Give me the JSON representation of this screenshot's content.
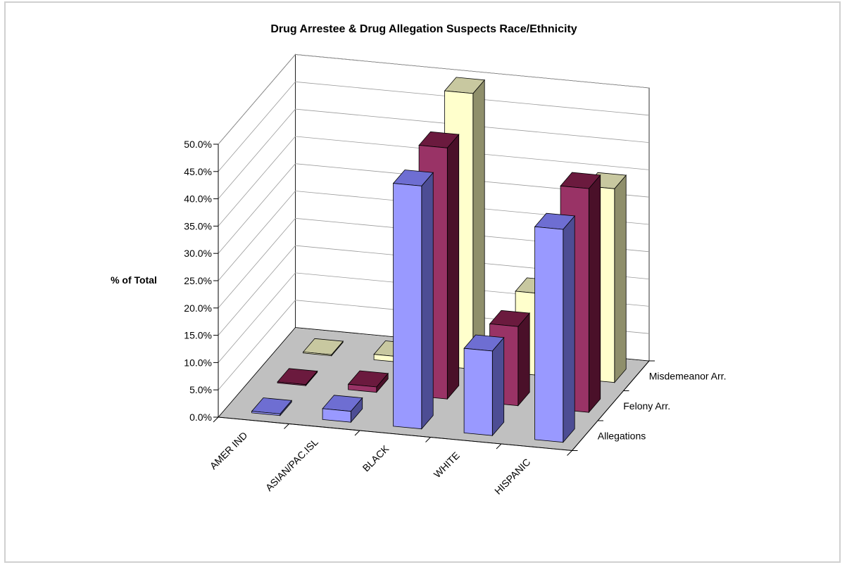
{
  "chart_data": {
    "type": "bar",
    "title": "Drug Arrestee & Drug Allegation Suspects Race/Ethnicity",
    "ylabel": "% of Total",
    "xlabel": "",
    "ylim": [
      0,
      0.5
    ],
    "yticks": [
      "0.0%",
      "5.0%",
      "10.0%",
      "15.0%",
      "20.0%",
      "25.0%",
      "30.0%",
      "35.0%",
      "40.0%",
      "45.0%",
      "50.0%"
    ],
    "categories": [
      "AMER IND",
      "ASIAN/PAC.ISL",
      "BLACK",
      "WHITE",
      "HISPANIC"
    ],
    "series": [
      {
        "name": "Allegations",
        "values": [
          0.003,
          0.02,
          0.445,
          0.155,
          0.39
        ]
      },
      {
        "name": "Felony Arr.",
        "values": [
          0.002,
          0.01,
          0.46,
          0.145,
          0.41
        ]
      },
      {
        "name": "Misdemeanor Arr.",
        "values": [
          0.002,
          0.01,
          0.505,
          0.15,
          0.355
        ]
      }
    ],
    "grid": true,
    "view": "3d-column"
  }
}
